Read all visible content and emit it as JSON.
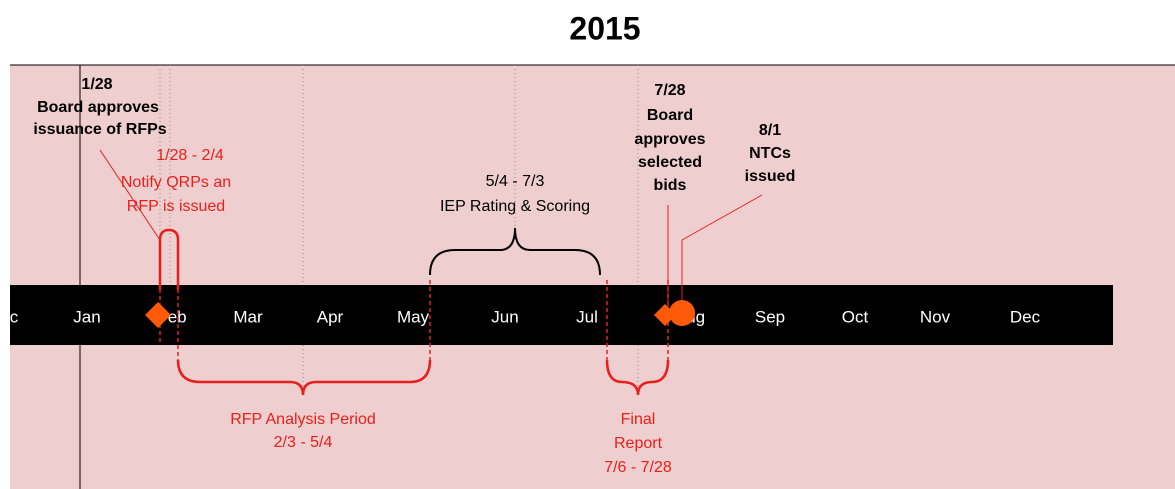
{
  "title": "2015",
  "months": [
    "c",
    "Jan",
    "Feb",
    "Mar",
    "Apr",
    "May",
    "Jun",
    "Jul",
    "Aug",
    "Sep",
    "Oct",
    "Nov",
    "Dec"
  ],
  "annotations": [
    {
      "lines": [
        "1/28",
        "Board approves",
        "issuance of RFPs"
      ]
    },
    {
      "lines": [
        "1/28 - 2/4",
        "Notify QRPs an",
        "RFP is issued"
      ]
    },
    {
      "lines": [
        "5/4 - 7/3",
        "IEP Rating & Scoring"
      ]
    },
    {
      "lines": [
        "7/28",
        "Board",
        "approves",
        "selected",
        "bids"
      ]
    },
    {
      "lines": [
        "8/1",
        "NTCs",
        "issued"
      ]
    },
    {
      "lines": [
        "RFP Analysis Period",
        "2/3 - 5/4"
      ]
    },
    {
      "lines": [
        "Final",
        "Report",
        "7/6 - 7/28"
      ]
    }
  ]
}
